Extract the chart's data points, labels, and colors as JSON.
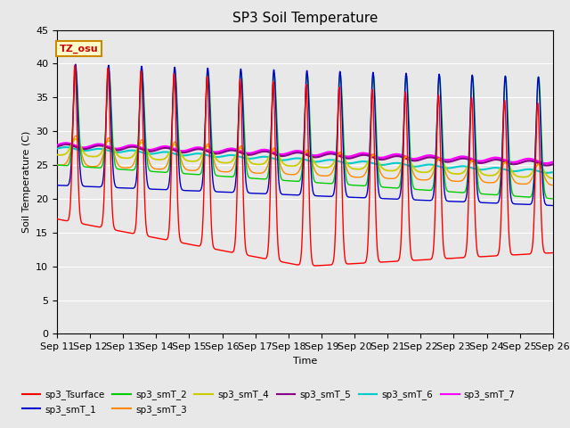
{
  "title": "SP3 Soil Temperature",
  "xlabel": "Time",
  "ylabel": "Soil Temperature (C)",
  "ylim": [
    0,
    45
  ],
  "n_days": 15,
  "xtick_labels": [
    "Sep 11",
    "Sep 12",
    "Sep 13",
    "Sep 14",
    "Sep 15",
    "Sep 16",
    "Sep 17",
    "Sep 18",
    "Sep 19",
    "Sep 20",
    "Sep 21",
    "Sep 22",
    "Sep 23",
    "Sep 24",
    "Sep 25",
    "Sep 26"
  ],
  "annotation_text": "TZ_osu",
  "annotation_bg": "#ffffcc",
  "annotation_border": "#cc8800",
  "annotation_text_color": "#cc0000",
  "fig_bg_color": "#e8e8e8",
  "plot_bg_color": "#e8e8e8",
  "series_colors": {
    "sp3_Tsurface": "#ff0000",
    "sp3_smT_1": "#0000cc",
    "sp3_smT_2": "#00cc00",
    "sp3_smT_3": "#ff8800",
    "sp3_smT_4": "#cccc00",
    "sp3_smT_5": "#880088",
    "sp3_smT_6": "#00cccc",
    "sp3_smT_7": "#ff00ff"
  },
  "yticks": [
    0,
    5,
    10,
    15,
    20,
    25,
    30,
    35,
    40,
    45
  ]
}
